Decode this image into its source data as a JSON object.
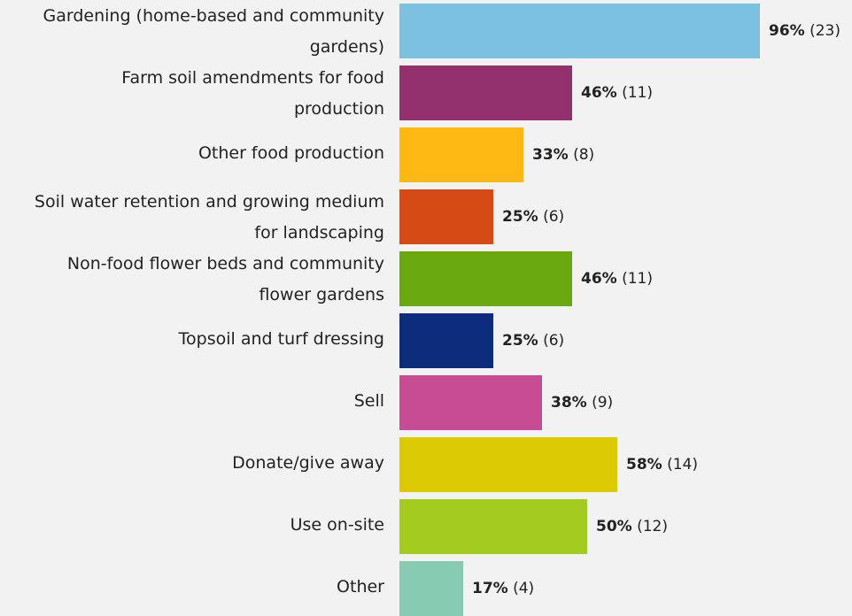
{
  "chart_data": {
    "type": "bar",
    "orientation": "horizontal",
    "categories": [
      "Gardening (home-based and community gardens)",
      "Farm soil amendments for food production",
      "Other food production",
      "Soil water retention and growing medium for landscaping",
      "Non-food flower beds and community flower gardens",
      "Topsoil and turf dressing",
      "Sell",
      "Donate/give away",
      "Use on-site",
      "Other"
    ],
    "category_lines": [
      [
        "Gardening (home-based and community",
        "gardens)"
      ],
      [
        "Farm soil amendments for food",
        "production"
      ],
      [
        "Other food production"
      ],
      [
        "Soil water retention and growing medium",
        "for landscaping"
      ],
      [
        "Non-food flower beds and community",
        "flower gardens"
      ],
      [
        "Topsoil and turf dressing"
      ],
      [
        "Sell"
      ],
      [
        "Donate/give away"
      ],
      [
        "Use on-site"
      ],
      [
        "Other"
      ]
    ],
    "values": [
      96,
      46,
      33,
      25,
      46,
      25,
      38,
      58,
      50,
      17
    ],
    "counts": [
      23,
      11,
      8,
      6,
      11,
      6,
      9,
      14,
      12,
      4
    ],
    "percent_labels": [
      "96%",
      "46%",
      "33%",
      "25%",
      "46%",
      "25%",
      "38%",
      "58%",
      "50%",
      "17%"
    ],
    "count_labels": [
      "(23)",
      "(11)",
      "(8)",
      "(6)",
      "(11)",
      "(6)",
      "(9)",
      "(14)",
      "(12)",
      "(4)"
    ],
    "colors": [
      "#7cc2e0",
      "#92316e",
      "#fdb813",
      "#d64a16",
      "#69a90f",
      "#0b2d7b",
      "#c74c93",
      "#dcca03",
      "#a3cb20",
      "#86cbb2"
    ],
    "xlim": [
      0,
      100
    ],
    "title": "",
    "xlabel": "",
    "ylabel": "",
    "grid": false,
    "legend": "none"
  }
}
